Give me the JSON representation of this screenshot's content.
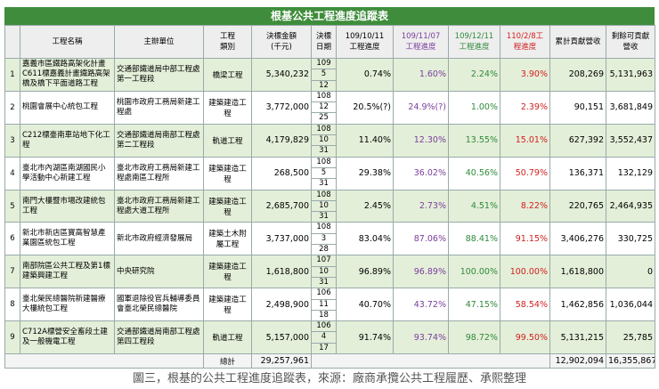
{
  "title": "根基公共工程進度追蹤表",
  "header": [
    [
      "工程名稱"
    ],
    [
      "主辦單位"
    ],
    [
      "工程",
      "類別"
    ],
    [
      "決標金額",
      "(千元)"
    ],
    [
      "決標",
      "日期"
    ],
    [
      "109/10/11",
      "工程進度"
    ],
    [
      "109/11/07",
      "工程進度"
    ],
    [
      "109/12/11",
      "工程進度"
    ],
    [
      "110/2/8工",
      "程進度"
    ],
    [
      "累計貢獻營收"
    ],
    [
      "剩餘可貢獻",
      "營收"
    ]
  ],
  "rows": [
    [
      "1",
      "嘉義市區鐵路高架化計畫C611標嘉義計畫鐵路高架橋及橋下平面道路工程",
      "交通部鐵道局中部工程處第一工程段",
      "橋梁工程",
      "5,340,232",
      [
        "109",
        "5",
        "12"
      ],
      "0.74%",
      "1.60%",
      "2.24%",
      "3.90%",
      "208,269",
      "5,131,963"
    ],
    [
      "2",
      "桃園會展中心統包工程",
      "桃園市政府工務局新建工程處",
      "建築建造工程",
      "3,772,000",
      [
        "108",
        "12",
        "25"
      ],
      "20.5%(?)",
      "24.9%(?)",
      "1.00%",
      "2.39%",
      "90,151",
      "3,681,849"
    ],
    [
      "3",
      "C212標臺南車站地下化工程",
      "交通部鐵道局南部工程處第二工程段",
      "軌道工程",
      "4,179,829",
      [
        "108",
        "10",
        "31"
      ],
      "11.40%",
      "12.30%",
      "13.55%",
      "15.01%",
      "627,392",
      "3,552,437"
    ],
    [
      "4",
      "臺北市內湖區南湖國民小學活動中心新建工程",
      "臺北市政府工務局新建工程處南區工程所",
      "建築建造工程",
      "268,500",
      [
        "108",
        "5",
        "31"
      ],
      "29.38%",
      "36.02%",
      "40.56%",
      "50.79%",
      "136,371",
      "132,129"
    ],
    [
      "5",
      "南門大樓暨市場改建統包工程",
      "臺北市政府工務局新建工程處大道工程所",
      "建築建造工程",
      "2,685,700",
      [
        "108",
        "10",
        "31"
      ],
      "2.45%",
      "2.73%",
      "4.51%",
      "8.22%",
      "220,765",
      "2,464,935"
    ],
    [
      "6",
      "新北市新店區寶高智慧產業園區統包工程",
      "新北市政府經濟發展局",
      "建築土木附屬工程",
      "3,737,000",
      [
        "108",
        "3",
        "28"
      ],
      "83.04%",
      "87.06%",
      "88.41%",
      "91.15%",
      "3,406,276",
      "330,725"
    ],
    [
      "7",
      "南部院區公共工程及第1標建築興建工程",
      "中央研究院",
      "建築建造工程",
      "1,618,800",
      [
        "107",
        "10",
        "31"
      ],
      "96.89%",
      "96.89%",
      "100.00%",
      "100.00%",
      "1,618,800",
      "0"
    ],
    [
      "8",
      "臺北榮民總醫院新建醫療大樓統包工程",
      "國軍退除役官兵輔導委員會臺北榮民總醫院",
      "建築建造工程",
      "2,498,900",
      [
        "106",
        "11",
        "18"
      ],
      "40.70%",
      "43.72%",
      "47.15%",
      "58.54%",
      "1,462,856",
      "1,036,044"
    ],
    [
      "9",
      "C712A標營安全畜段土建及一般機電工程",
      "交通部鐵道局南部工程處第四工程段",
      "軌道工程",
      "5,157,000",
      [
        "106",
        "4",
        "17"
      ],
      "91.74%",
      "93.74%",
      "98.72%",
      "99.50%",
      "5,131,215",
      "25,785"
    ]
  ],
  "total": {
    "label": "總計",
    "amount": "29,257,961",
    "cum": "12,902,094",
    "rem": "16,355,867"
  },
  "caption": "圖三，根基的公共工程進度追蹤表，來源：廠商承攬公共工程履歷、承熙整理"
}
